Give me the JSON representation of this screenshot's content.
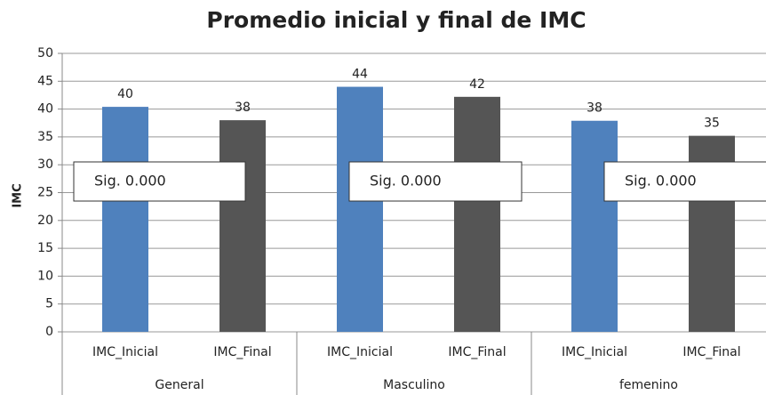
{
  "chart_data": {
    "type": "bar",
    "title": "Promedio inicial y final de IMC",
    "y_label": "IMC",
    "categories": [
      "General",
      "Masculino",
      "femenino"
    ],
    "series": [
      {
        "name": "IMC_Inicial",
        "color": "#4f81bd",
        "values": [
          40.4,
          44.0,
          37.9
        ],
        "value_labels": [
          "40",
          "44",
          "38"
        ]
      },
      {
        "name": "IMC_Final",
        "color": "#555555",
        "values": [
          38.0,
          42.2,
          35.2
        ],
        "value_labels": [
          "38",
          "42",
          "35"
        ]
      }
    ],
    "ylim": [
      0,
      50
    ],
    "yticks": [
      0,
      5,
      10,
      15,
      20,
      25,
      30,
      35,
      40,
      45,
      50
    ],
    "grid": true,
    "annotations": [
      "Sig. 0.000",
      "Sig. 0.000",
      "Sig. 0.000"
    ]
  }
}
